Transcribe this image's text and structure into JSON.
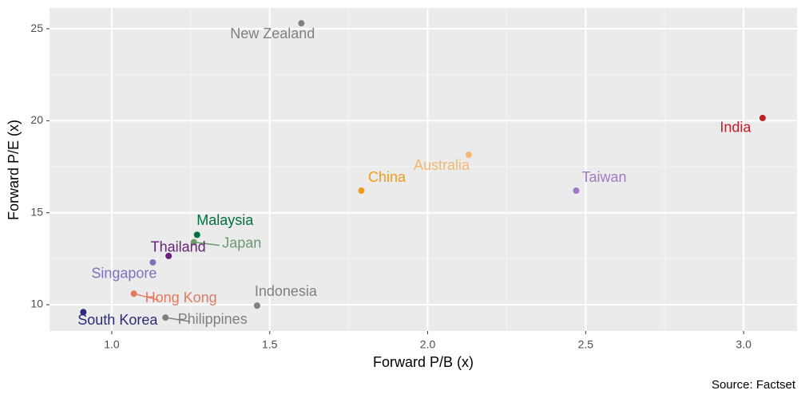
{
  "chart_data": {
    "type": "scatter",
    "x_label": "Forward P/B (x)",
    "y_label": "Forward P/E (x)",
    "source": "Source: Factset",
    "xlim": [
      0.803,
      3.169
    ],
    "ylim": [
      8.57,
      26.13
    ],
    "xticks": [
      {
        "value": 1.0,
        "label": "1.0"
      },
      1.5,
      {
        "value": 2.0,
        "label": "2.0"
      },
      2.5,
      {
        "value": 3.0,
        "label": "3.0"
      }
    ],
    "yticks": [
      10,
      15,
      20,
      25
    ],
    "grid": true,
    "background": "#ebebeb",
    "series": [
      {
        "name": "New Zealand",
        "color": "#808080",
        "x": [
          1.6
        ],
        "values": [
          25.3
        ]
      },
      {
        "name": "India",
        "color": "#c0202a",
        "x": [
          3.06
        ],
        "values": [
          20.15
        ]
      },
      {
        "name": "Australia",
        "color": "#f5b86e",
        "x": [
          2.13
        ],
        "values": [
          18.15
        ]
      },
      {
        "name": "China",
        "color": "#f29a1a",
        "x": [
          1.79
        ],
        "values": [
          16.2
        ]
      },
      {
        "name": "Taiwan",
        "color": "#a07ac0",
        "x": [
          2.47
        ],
        "values": [
          16.2
        ]
      },
      {
        "name": "Malaysia",
        "color": "#00703c",
        "x": [
          1.27
        ],
        "values": [
          13.8
        ]
      },
      {
        "name": "Japan",
        "color": "#6a9a6a",
        "x": [
          1.26
        ],
        "values": [
          13.4
        ]
      },
      {
        "name": "Thailand",
        "color": "#6a2080",
        "x": [
          1.18
        ],
        "values": [
          12.65
        ]
      },
      {
        "name": "Singapore",
        "color": "#7f72b8",
        "x": [
          1.13
        ],
        "values": [
          12.3
        ]
      },
      {
        "name": "Hong Kong",
        "color": "#e07b62",
        "x": [
          1.07
        ],
        "values": [
          10.6
        ]
      },
      {
        "name": "Indonesia",
        "color": "#808080",
        "x": [
          1.46
        ],
        "values": [
          9.95
        ]
      },
      {
        "name": "South Korea",
        "color": "#2a2a80",
        "x": [
          0.91
        ],
        "values": [
          9.6
        ]
      },
      {
        "name": "Philippines",
        "color": "#808080",
        "x": [
          1.17
        ],
        "values": [
          9.3
        ]
      }
    ]
  }
}
